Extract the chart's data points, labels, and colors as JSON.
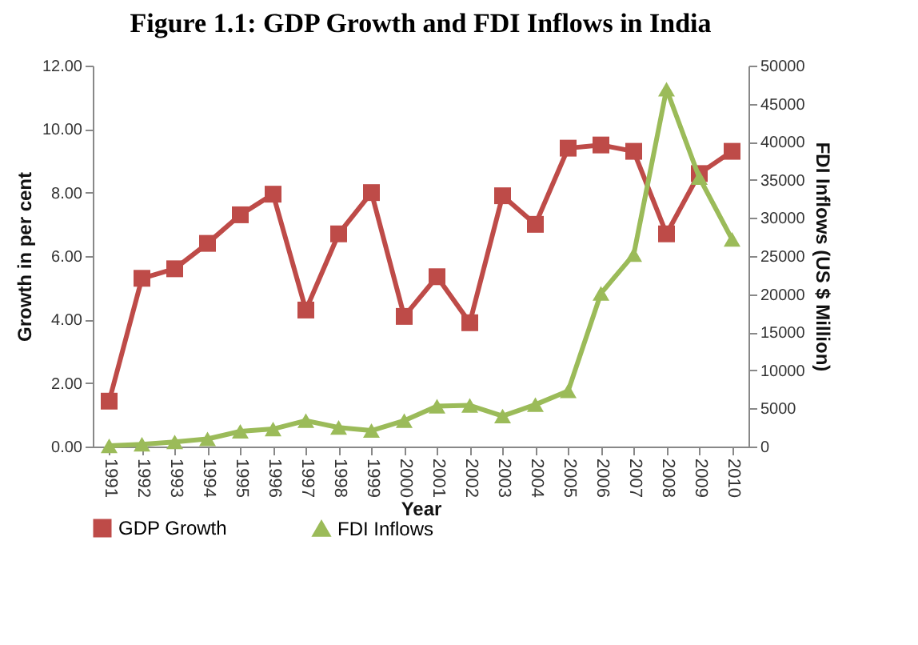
{
  "chart_data": {
    "type": "line",
    "title": "Figure 1.1: GDP Growth and FDI Inflows in India",
    "xlabel": "Year",
    "ylabel": "Growth in per cent",
    "y2label": "FDI Inflows (US $ Million)",
    "categories": [
      "1991",
      "1992",
      "1993",
      "1994",
      "1995",
      "1996",
      "1997",
      "1998",
      "1999",
      "2000",
      "2001",
      "2002",
      "2003",
      "2004",
      "2005",
      "2006",
      "2007",
      "2008",
      "2009",
      "2010"
    ],
    "series": [
      {
        "name": "GDP Growth",
        "color": "#be4b48",
        "marker": "square",
        "values": [
          1.43,
          5.3,
          5.6,
          6.4,
          7.3,
          7.95,
          4.3,
          6.7,
          8.0,
          4.1,
          5.35,
          3.9,
          7.9,
          7.0,
          9.4,
          9.5,
          9.3,
          6.7,
          8.6,
          9.3
        ]
      },
      {
        "name": "FDI Inflows",
        "color": "#9bbb59",
        "marker": "triangle",
        "axis": "y2",
        "values": [
          100,
          300,
          600,
          1000,
          2000,
          2300,
          3400,
          2500,
          2100,
          3400,
          5300,
          5400,
          4000,
          5500,
          7300,
          20100,
          25200,
          46900,
          35300,
          27200
        ]
      }
    ],
    "ylim": [
      0,
      12
    ],
    "yticks": [
      {
        "value": 0,
        "label": "0.00"
      },
      {
        "value": 2,
        "label": "2.00"
      },
      {
        "value": 4,
        "label": "4.00"
      },
      {
        "value": 6,
        "label": "6.00"
      },
      {
        "value": 8,
        "label": "8.00"
      },
      {
        "value": 10,
        "label": "10.00"
      },
      {
        "value": 12,
        "label": "12.00"
      }
    ],
    "y2lim": [
      0,
      50000
    ],
    "y2ticks": [
      0,
      5000,
      10000,
      15000,
      20000,
      25000,
      30000,
      35000,
      40000,
      45000,
      50000
    ],
    "grid": false,
    "legend": "bottom"
  }
}
